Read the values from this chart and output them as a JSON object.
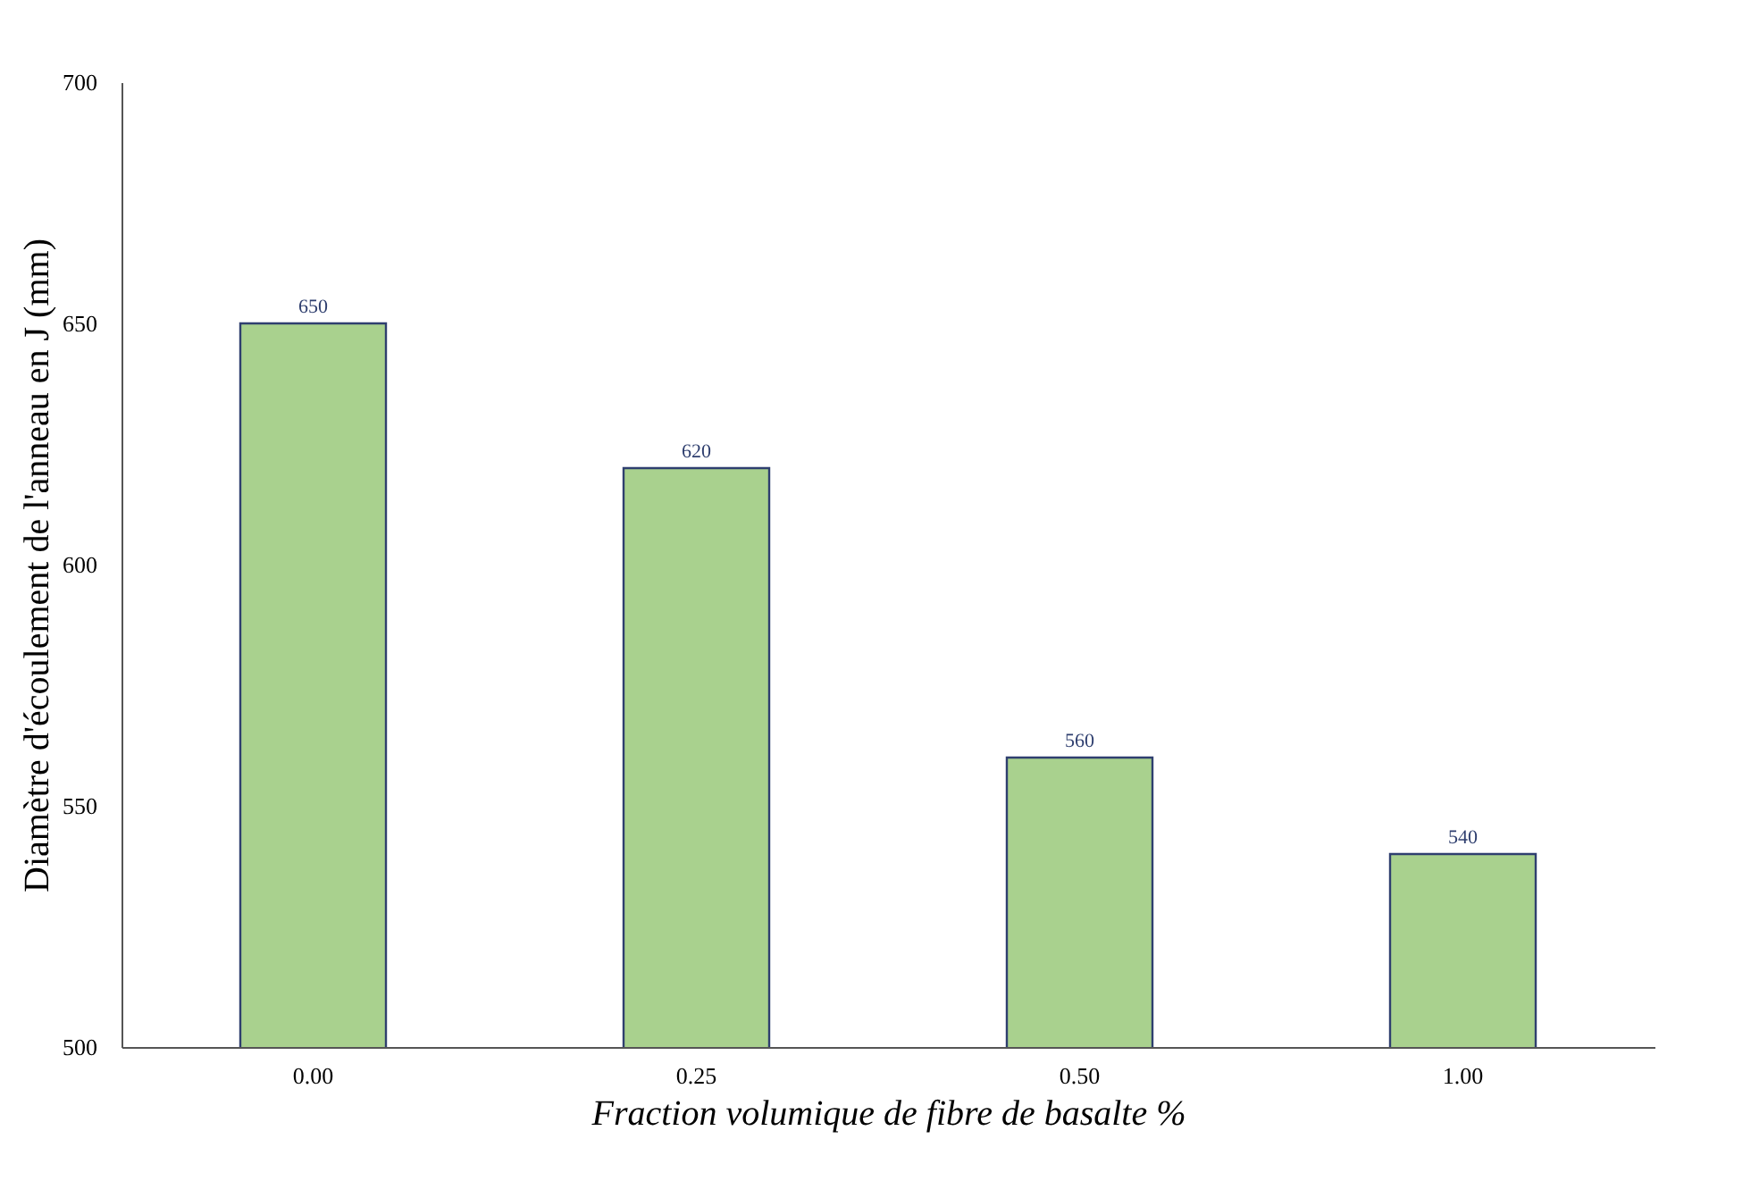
{
  "chart_data": {
    "type": "bar",
    "xlabel": "Fraction volumique de fibre de basalte %",
    "ylabel": "Diamètre d'écoulement de l'anneau en J (mm)",
    "categories": [
      "0.00",
      "0.25",
      "0.50",
      "1.00"
    ],
    "values": [
      650,
      620,
      560,
      540
    ],
    "color": "#a9d18e",
    "ylim": [
      500,
      700
    ],
    "yticks": [
      500,
      550,
      600,
      650,
      700
    ],
    "grid": false,
    "data_labels": true
  }
}
